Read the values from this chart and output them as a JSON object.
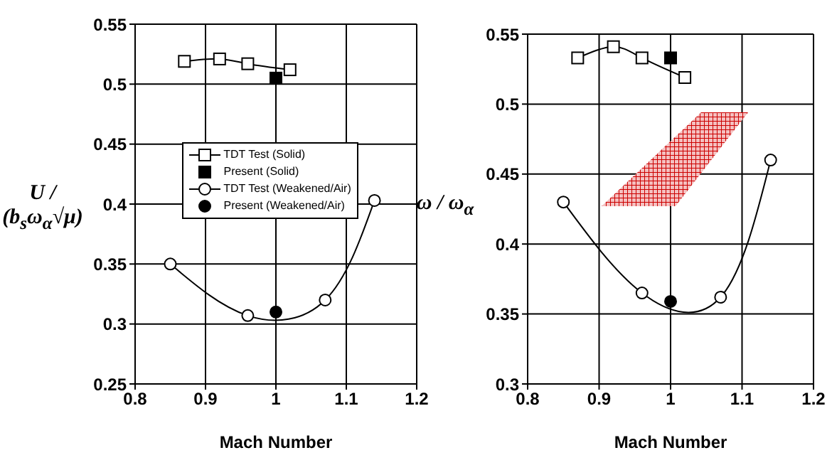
{
  "chart_data": [
    {
      "type": "line",
      "xlabel": "Mach Number",
      "ylabel": "U / (b$_{s}$ω$_{α}$√μ)",
      "xlim": [
        0.8,
        1.2
      ],
      "xticks": [
        0.8,
        0.9,
        1,
        1.1,
        1.2
      ],
      "ylim": [
        0.25,
        0.55
      ],
      "yticks": [
        0.25,
        0.3,
        0.35,
        0.4,
        0.45,
        0.5,
        0.55
      ],
      "grid": true,
      "legend": "center",
      "series": [
        {
          "name": "TDT Test (Solid)",
          "type": "line",
          "marker": "square",
          "color": "#000000",
          "x": [
            0.87,
            0.92,
            0.96,
            1.02
          ],
          "values": [
            0.519,
            0.521,
            0.517,
            0.512
          ]
        },
        {
          "name": "Present (Solid)",
          "type": "scatter",
          "marker": "square",
          "color": "#000000",
          "x": [
            1.0
          ],
          "values": [
            0.505
          ]
        },
        {
          "name": "TDT Test (Weakened/Air)",
          "type": "line",
          "marker": "circle",
          "color": "#000000",
          "x": [
            0.85,
            0.96,
            1.07,
            1.14
          ],
          "values": [
            0.35,
            0.307,
            0.32,
            0.403
          ]
        },
        {
          "name": "Present (Weakened/Air)",
          "type": "scatter",
          "marker": "circle",
          "color": "#000000",
          "x": [
            1.0
          ],
          "values": [
            0.31
          ]
        }
      ]
    },
    {
      "type": "line",
      "xlabel": "Mach Number",
      "ylabel": "ω / ω$_{α}$",
      "xlim": [
        0.8,
        1.2
      ],
      "xticks": [
        0.8,
        0.9,
        1,
        1.1,
        1.2
      ],
      "ylim": [
        0.3,
        0.55
      ],
      "yticks": [
        0.3,
        0.35,
        0.4,
        0.45,
        0.5,
        0.55
      ],
      "grid": true,
      "series": [
        {
          "type": "line",
          "marker": "square",
          "color": "#000000",
          "x": [
            0.87,
            0.92,
            0.96,
            1.02
          ],
          "values": [
            0.533,
            0.541,
            0.533,
            0.519
          ]
        },
        {
          "type": "scatter",
          "marker": "square",
          "color": "#000000",
          "x": [
            1.0
          ],
          "values": [
            0.533
          ]
        },
        {
          "type": "line",
          "marker": "circle",
          "color": "#000000",
          "x": [
            0.85,
            0.96,
            1.07,
            1.14
          ],
          "values": [
            0.43,
            0.365,
            0.362,
            0.46
          ]
        },
        {
          "type": "scatter",
          "marker": "circle",
          "color": "#000000",
          "x": [
            1.0
          ],
          "values": [
            0.359
          ]
        }
      ]
    }
  ]
}
